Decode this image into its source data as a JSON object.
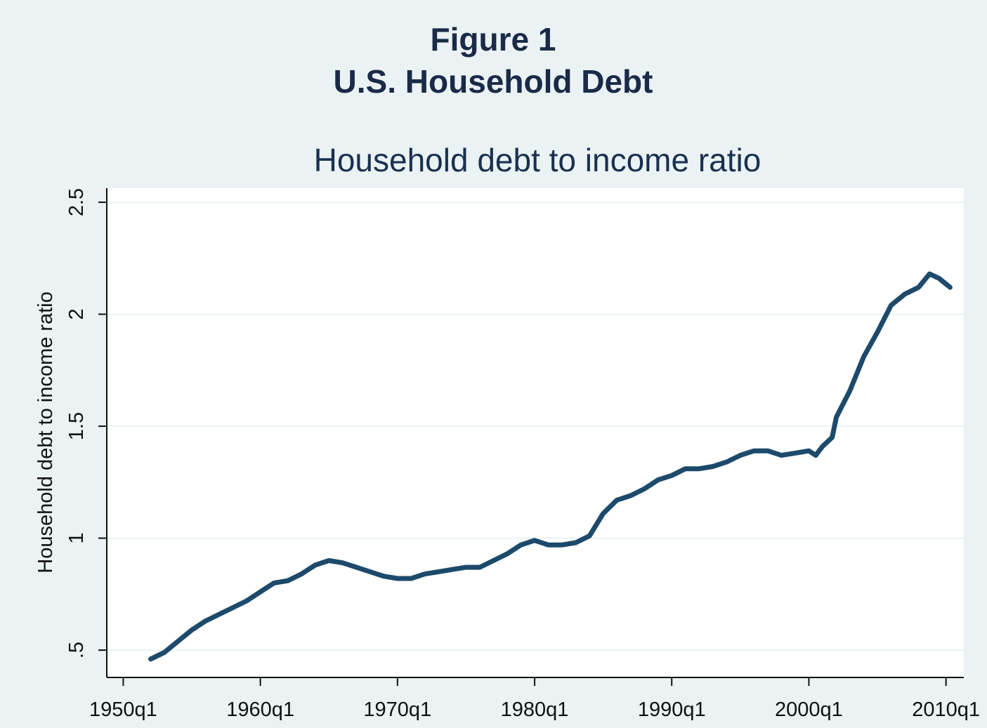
{
  "chart_data": {
    "type": "line",
    "title": [
      "Figure 1",
      "U.S. Household Debt"
    ],
    "subtitle": "Household debt to income ratio",
    "y_label": "Household debt to income ratio",
    "x": [
      1952,
      1953,
      1954,
      1955,
      1956,
      1957,
      1958,
      1959,
      1960,
      1961,
      1962,
      1963,
      1964,
      1965,
      1966,
      1967,
      1968,
      1969,
      1970,
      1971,
      1972,
      1973,
      1974,
      1975,
      1976,
      1977,
      1978,
      1979,
      1980,
      1981,
      1982,
      1983,
      1984,
      1985,
      1986,
      1987,
      1988,
      1989,
      1990,
      1991,
      1992,
      1993,
      1994,
      1995,
      1996,
      1997,
      1998,
      1999,
      2000,
      2000.5,
      2001,
      2001.7,
      2002,
      2003,
      2004,
      2005,
      2006,
      2007,
      2008,
      2008.8,
      2009.5,
      2010.3
    ],
    "values": [
      0.46,
      0.49,
      0.54,
      0.59,
      0.63,
      0.66,
      0.69,
      0.72,
      0.76,
      0.8,
      0.81,
      0.84,
      0.88,
      0.9,
      0.89,
      0.87,
      0.85,
      0.83,
      0.82,
      0.82,
      0.84,
      0.85,
      0.86,
      0.87,
      0.87,
      0.9,
      0.93,
      0.97,
      0.99,
      0.97,
      0.97,
      0.98,
      1.01,
      1.11,
      1.17,
      1.19,
      1.22,
      1.26,
      1.28,
      1.31,
      1.31,
      1.32,
      1.34,
      1.37,
      1.39,
      1.39,
      1.37,
      1.38,
      1.39,
      1.37,
      1.41,
      1.45,
      1.54,
      1.66,
      1.81,
      1.92,
      2.04,
      2.09,
      2.12,
      2.18,
      2.16,
      2.12
    ],
    "color": "#1d4a6b",
    "xlim": [
      1948.8,
      2011.3
    ],
    "xticks": [
      {
        "value": 1950,
        "label": "1950q1"
      },
      {
        "value": 1960,
        "label": "1960q1"
      },
      {
        "value": 1970,
        "label": "1970q1"
      },
      {
        "value": 1980,
        "label": "1980q1"
      },
      {
        "value": 1990,
        "label": "1990q1"
      },
      {
        "value": 2000,
        "label": "2000q1"
      },
      {
        "value": 2010,
        "label": "2010q1"
      }
    ],
    "ylim": [
      0.378,
      2.563
    ],
    "yticks": [
      {
        "value": 0.5,
        "label": ".5"
      },
      1,
      1.5,
      2,
      2.5
    ],
    "grid": true
  }
}
